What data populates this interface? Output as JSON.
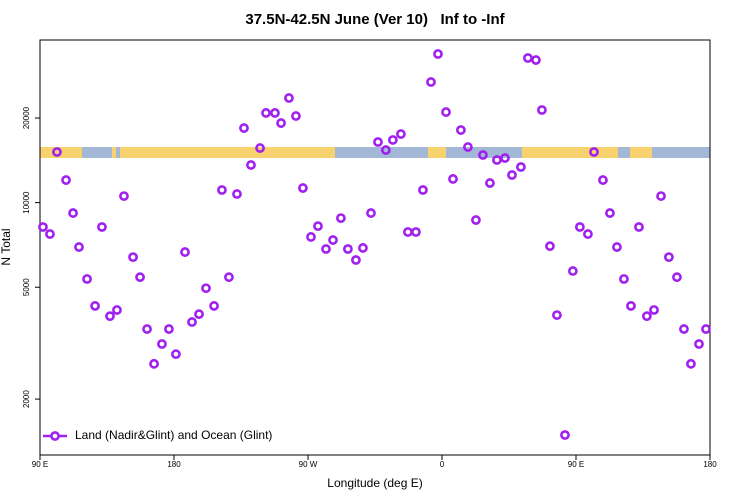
{
  "chart_data": {
    "type": "scatter",
    "title": "37.5N-42.5N June (Ver 10)   Inf to -Inf",
    "x_label": "Longitude (deg E)",
    "y_label": "N Total",
    "log_y": true,
    "legend": "bottom-left",
    "xlim": [
      90,
      540
    ],
    "ylim": [
      1265,
      37900
    ],
    "xticks": [
      {
        "value": 90,
        "label": "90 E"
      },
      180,
      {
        "value": 270,
        "label": "90 W"
      },
      {
        "value": 360,
        "label": "0"
      },
      {
        "value": 450,
        "label": "90 E"
      },
      {
        "value": 540,
        "label": "180"
      }
    ],
    "yticks": [
      2000,
      5000,
      10000,
      20000
    ],
    "series": [
      {
        "name": "Land (Nadir&Glint) and Ocean (Glint)",
        "color": "#a020f0",
        "x": [
          92.0,
          96.7,
          101.4,
          107.5,
          112.2,
          116.2,
          121.6,
          127.0,
          131.6,
          137.0,
          141.7,
          146.4,
          152.5,
          157.2,
          161.9,
          166.6,
          171.9,
          176.6,
          181.3,
          187.4,
          192.1,
          196.8,
          201.5,
          206.9,
          212.2,
          216.9,
          222.3,
          227.0,
          231.7,
          237.8,
          241.8,
          247.8,
          251.9,
          257.2,
          261.9,
          266.6,
          272.0,
          276.7,
          282.1,
          286.8,
          292.1,
          296.8,
          302.2,
          306.9,
          312.3,
          317.0,
          322.3,
          327.0,
          332.4,
          337.1,
          342.5,
          347.2,
          352.6,
          357.3,
          362.7,
          367.4,
          372.7,
          377.4,
          382.8,
          387.5,
          392.2,
          396.9,
          402.3,
          407.0,
          413.0,
          417.7,
          423.1,
          427.1,
          432.5,
          437.2,
          442.6,
          447.9,
          452.6,
          458.0,
          462.1,
          468.1,
          472.8,
          477.5,
          482.2,
          486.9,
          492.3,
          497.6,
          502.4,
          507.1,
          512.4,
          517.8,
          522.5,
          527.2,
          532.6,
          537.3
        ],
        "values": [
          8190,
          7730,
          15140,
          12030,
          9180,
          6950,
          5350,
          4290,
          8190,
          3945,
          4150,
          10550,
          6400,
          5430,
          3550,
          2670,
          3140,
          3550,
          2890,
          6670,
          3760,
          4010,
          4960,
          4290,
          11090,
          5430,
          10730,
          18420,
          13610,
          15640,
          20850,
          20850,
          19190,
          23560,
          20330,
          11270,
          7550,
          8250,
          6840,
          7360,
          8810,
          6840,
          6250,
          6900,
          9180,
          16430,
          15380,
          16710,
          17540,
          7860,
          7860,
          11090,
          26860,
          33800,
          21000,
          12140,
          18120,
          15770,
          8670,
          14770,
          11740,
          14180,
          14410,
          12540,
          13390,
          32700,
          32160,
          21360,
          7000,
          3980,
          1490,
          5710,
          8190,
          7730,
          15140,
          12030,
          9180,
          6950,
          5350,
          4290,
          8190,
          3945,
          4150,
          10550,
          6400,
          5430,
          3550,
          2670,
          3140,
          3550
        ]
      }
    ]
  }
}
